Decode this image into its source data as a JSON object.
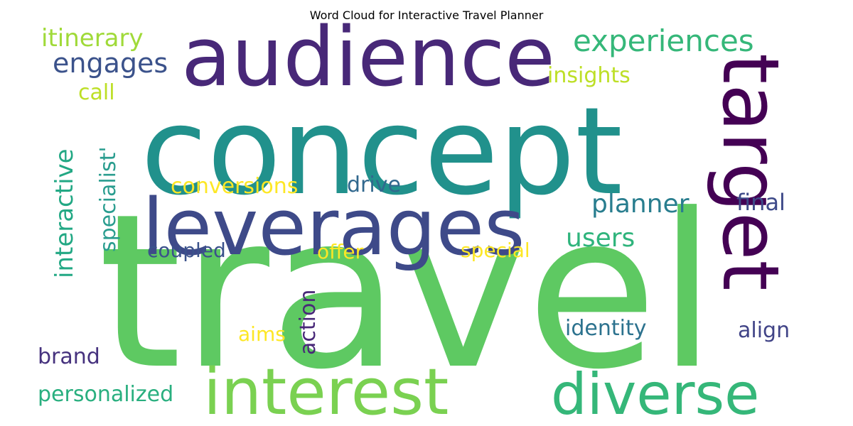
{
  "title": "Word Cloud for Interactive Travel Planner",
  "words": [
    {
      "text": "travel",
      "color": "#5ec962",
      "rotate": 0
    },
    {
      "text": "concept",
      "color": "#21918c",
      "rotate": 0
    },
    {
      "text": "audience",
      "color": "#482878",
      "rotate": 0
    },
    {
      "text": "leverages",
      "color": "#3e4a89",
      "rotate": 0
    },
    {
      "text": "target",
      "color": "#440154",
      "rotate": 90
    },
    {
      "text": "interest",
      "color": "#7ad151",
      "rotate": 0
    },
    {
      "text": "diverse",
      "color": "#35b779",
      "rotate": 0
    },
    {
      "text": "experiences",
      "color": "#35b779",
      "rotate": 0
    },
    {
      "text": "engages",
      "color": "#3b528b",
      "rotate": 0
    },
    {
      "text": "itinerary",
      "color": "#a0da39",
      "rotate": 0
    },
    {
      "text": "insights",
      "color": "#bddf26",
      "rotate": 0
    },
    {
      "text": "call",
      "color": "#bddf26",
      "rotate": 0
    },
    {
      "text": "interactive",
      "color": "#22a884",
      "rotate": -90
    },
    {
      "text": "specialist'",
      "color": "#2a9d8f",
      "rotate": -90
    },
    {
      "text": "conversions",
      "color": "#fde725",
      "rotate": 0
    },
    {
      "text": "drive",
      "color": "#31688e",
      "rotate": 0
    },
    {
      "text": "planner",
      "color": "#287d8e",
      "rotate": 0
    },
    {
      "text": "final",
      "color": "#3e4a89",
      "rotate": 0
    },
    {
      "text": "users",
      "color": "#2fb47c",
      "rotate": 0
    },
    {
      "text": "coupled",
      "color": "#3b528b",
      "rotate": 0
    },
    {
      "text": "offer",
      "color": "#fde725",
      "rotate": 0
    },
    {
      "text": "special",
      "color": "#fde725",
      "rotate": 0
    },
    {
      "text": "action",
      "color": "#482878",
      "rotate": -90
    },
    {
      "text": "aims",
      "color": "#fde725",
      "rotate": 0
    },
    {
      "text": "identity",
      "color": "#2c728e",
      "rotate": 0
    },
    {
      "text": "align",
      "color": "#414487",
      "rotate": 0
    },
    {
      "text": "brand",
      "color": "#46327e",
      "rotate": 0
    },
    {
      "text": "personalized",
      "color": "#29af7f",
      "rotate": 0
    }
  ]
}
